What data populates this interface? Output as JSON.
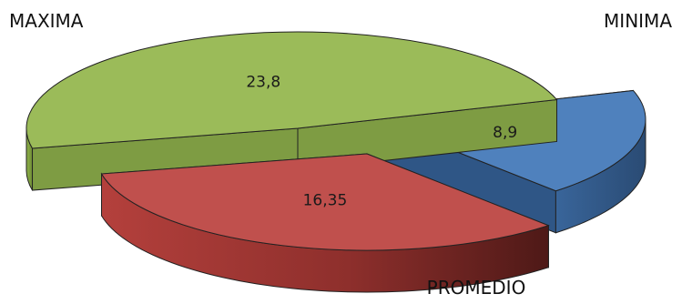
{
  "chart_data": {
    "type": "pie",
    "style": "3d-exploded",
    "title": "",
    "categories": [
      "MAXIMA",
      "MINIMA",
      "PROMEDIO"
    ],
    "values": [
      23.8,
      8.9,
      16.35
    ],
    "data_labels": [
      "23,8",
      "8,9",
      "16,35"
    ],
    "legend": "none",
    "colors": {
      "MAXIMA": "#9bbb59",
      "MINIMA": "#4f81bd",
      "PROMEDIO": "#c0504d"
    }
  }
}
